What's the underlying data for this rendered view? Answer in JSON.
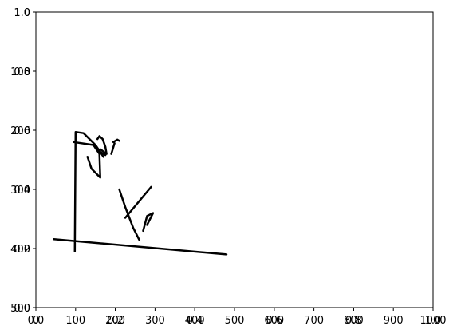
{
  "chart_data": {
    "type": "line",
    "title": "",
    "xlabel": "",
    "ylabel": "",
    "grid": false,
    "axes": [
      {
        "name": "unit-axes",
        "x_ticks": [
          "0.0",
          "0.2",
          "0.4",
          "0.6",
          "0.8",
          "1.0"
        ],
        "y_ticks": [
          "0.0",
          "0.2",
          "0.4",
          "0.6",
          "0.8",
          "1.0"
        ]
      },
      {
        "name": "pixel-axes",
        "x_ticks": [
          "0",
          "100",
          "200",
          "300",
          "400",
          "500",
          "600",
          "700",
          "800",
          "900",
          "1000"
        ],
        "y_ticks": [
          "0",
          "100",
          "200",
          "300",
          "400",
          "500"
        ],
        "xlim": [
          0,
          1000
        ],
        "ylim": [
          500,
          0
        ]
      }
    ],
    "series": [
      {
        "points": [
          [
            98,
            405
          ],
          [
            100,
            203
          ],
          [
            120,
            205
          ],
          [
            150,
            225
          ],
          [
            170,
            245
          ]
        ]
      },
      {
        "points": [
          [
            95,
            220
          ],
          [
            145,
            225
          ],
          [
            160,
            240
          ],
          [
            162,
            280
          ],
          [
            140,
            265
          ],
          [
            130,
            245
          ]
        ]
      },
      {
        "points": [
          [
            155,
            215
          ],
          [
            160,
            210
          ],
          [
            168,
            215
          ],
          [
            175,
            228
          ],
          [
            178,
            240
          ],
          [
            162,
            232
          ]
        ]
      },
      {
        "points": [
          [
            150,
            230
          ],
          [
            165,
            238
          ],
          [
            175,
            242
          ]
        ]
      },
      {
        "points": [
          [
            190,
            240
          ],
          [
            198,
            222
          ]
        ]
      },
      {
        "points": [
          [
            195,
            220
          ],
          [
            205,
            216
          ],
          [
            210,
            218
          ]
        ]
      },
      {
        "points": [
          [
            45,
            384
          ],
          [
            480,
            410
          ]
        ]
      },
      {
        "points": [
          [
            225,
            348
          ],
          [
            290,
            296
          ]
        ]
      },
      {
        "points": [
          [
            210,
            300
          ],
          [
            225,
            330
          ],
          [
            245,
            365
          ],
          [
            260,
            385
          ]
        ]
      },
      {
        "points": [
          [
            270,
            370
          ],
          [
            280,
            345
          ],
          [
            295,
            340
          ],
          [
            280,
            360
          ]
        ]
      }
    ]
  }
}
